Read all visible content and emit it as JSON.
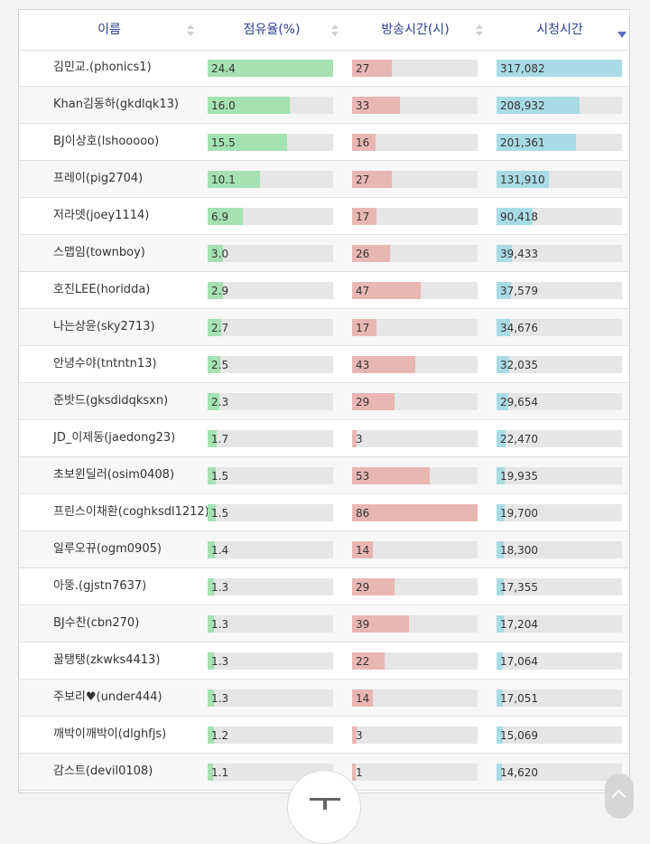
{
  "colors": {
    "share_bar": "#a5e1b2",
    "broadcast_bar": "#e8b7b3",
    "watch_bar": "#a9dbe5",
    "bar_track": "#e6e6e6",
    "header_text": "#2a3f8c"
  },
  "table": {
    "columns": [
      {
        "key": "name",
        "label": "이름",
        "sortable": true,
        "sorted": "none"
      },
      {
        "key": "share",
        "label": "점유율(%)",
        "sortable": true,
        "sorted": "none",
        "max": 24.4
      },
      {
        "key": "broadcast",
        "label": "방송시간(시)",
        "sortable": true,
        "sorted": "none",
        "max": 86
      },
      {
        "key": "watch",
        "label": "시청시간",
        "sortable": true,
        "sorted": "desc",
        "max": 317082
      }
    ],
    "rows": [
      {
        "name": "김민교.(phonics1)",
        "share": 24.4,
        "share_text": "24.4",
        "broadcast": 27,
        "broadcast_text": "27",
        "watch": 317082,
        "watch_text": "317,082"
      },
      {
        "name": "Khan김동하(gkdlqk13)",
        "share": 16.0,
        "share_text": "16.0",
        "broadcast": 33,
        "broadcast_text": "33",
        "watch": 208932,
        "watch_text": "208,932"
      },
      {
        "name": "BJ이상호(lshooooo)",
        "share": 15.5,
        "share_text": "15.5",
        "broadcast": 16,
        "broadcast_text": "16",
        "watch": 201361,
        "watch_text": "201,361"
      },
      {
        "name": "프레이(pig2704)",
        "share": 10.1,
        "share_text": "10.1",
        "broadcast": 27,
        "broadcast_text": "27",
        "watch": 131910,
        "watch_text": "131,910"
      },
      {
        "name": "저라뎃(joey1114)",
        "share": 6.9,
        "share_text": "6.9",
        "broadcast": 17,
        "broadcast_text": "17",
        "watch": 90418,
        "watch_text": "90,418"
      },
      {
        "name": "스맵임(townboy)",
        "share": 3.0,
        "share_text": "3.0",
        "broadcast": 26,
        "broadcast_text": "26",
        "watch": 39433,
        "watch_text": "39,433"
      },
      {
        "name": "호진LEE(horidda)",
        "share": 2.9,
        "share_text": "2.9",
        "broadcast": 47,
        "broadcast_text": "47",
        "watch": 37579,
        "watch_text": "37,579"
      },
      {
        "name": "나는상윤(sky2713)",
        "share": 2.7,
        "share_text": "2.7",
        "broadcast": 17,
        "broadcast_text": "17",
        "watch": 34676,
        "watch_text": "34,676"
      },
      {
        "name": "안녕수야(tntntn13)",
        "share": 2.5,
        "share_text": "2.5",
        "broadcast": 43,
        "broadcast_text": "43",
        "watch": 32035,
        "watch_text": "32,035"
      },
      {
        "name": "준밧드(gksdidqksxn)",
        "share": 2.3,
        "share_text": "2.3",
        "broadcast": 29,
        "broadcast_text": "29",
        "watch": 29654,
        "watch_text": "29,654"
      },
      {
        "name": "JD_이제동(jaedong23)",
        "share": 1.7,
        "share_text": "1.7",
        "broadcast": 3,
        "broadcast_text": "3",
        "watch": 22470,
        "watch_text": "22,470"
      },
      {
        "name": "초보윈딜러(osim0408)",
        "share": 1.5,
        "share_text": "1.5",
        "broadcast": 53,
        "broadcast_text": "53",
        "watch": 19935,
        "watch_text": "19,935"
      },
      {
        "name": "프린스이채환(coghksdl1212)",
        "share": 1.5,
        "share_text": "1.5",
        "broadcast": 86,
        "broadcast_text": "86",
        "watch": 19700,
        "watch_text": "19,700"
      },
      {
        "name": "일루오뀨(ogm0905)",
        "share": 1.4,
        "share_text": "1.4",
        "broadcast": 14,
        "broadcast_text": "14",
        "watch": 18300,
        "watch_text": "18,300"
      },
      {
        "name": "아뚱.(gjstn7637)",
        "share": 1.3,
        "share_text": "1.3",
        "broadcast": 29,
        "broadcast_text": "29",
        "watch": 17355,
        "watch_text": "17,355"
      },
      {
        "name": "BJ수찬(cbn270)",
        "share": 1.3,
        "share_text": "1.3",
        "broadcast": 39,
        "broadcast_text": "39",
        "watch": 17204,
        "watch_text": "17,204"
      },
      {
        "name": "꿀탱탱(zkwks4413)",
        "share": 1.3,
        "share_text": "1.3",
        "broadcast": 22,
        "broadcast_text": "22",
        "watch": 17064,
        "watch_text": "17,064"
      },
      {
        "name": "주보리♥(under444)",
        "share": 1.3,
        "share_text": "1.3",
        "broadcast": 14,
        "broadcast_text": "14",
        "watch": 17051,
        "watch_text": "17,051"
      },
      {
        "name": "깨박이깨박이(dlghfjs)",
        "share": 1.2,
        "share_text": "1.2",
        "broadcast": 3,
        "broadcast_text": "3",
        "watch": 15069,
        "watch_text": "15,069"
      },
      {
        "name": "감스트(devil0108)",
        "share": 1.1,
        "share_text": "1.1",
        "broadcast": 1,
        "broadcast_text": "1",
        "watch": 14620,
        "watch_text": "14,620"
      }
    ]
  },
  "controls": {
    "scroll_top_icon": "scroll-to-top-icon",
    "corner_up_icon": "chevron-up-icon"
  }
}
